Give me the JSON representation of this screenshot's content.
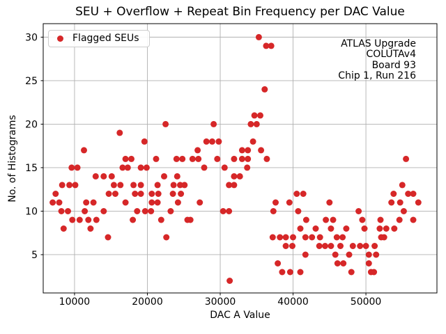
{
  "chart_data": {
    "type": "scatter",
    "title": "SEU + Overflow + Repeat Bin Frequency per DAC Value",
    "xlabel": "DAC A Value",
    "ylabel": "No. of Histograms",
    "xlim": [
      5700,
      59750
    ],
    "ylim": [
      0.6,
      31.55
    ],
    "xticks": [
      10000,
      20000,
      30000,
      40000,
      50000
    ],
    "yticks": [
      5,
      10,
      15,
      20,
      25,
      30
    ],
    "grid": true,
    "grid_color": "#b0b0b0",
    "marker_color": "#d62728",
    "marker_radius": 4.5,
    "legend_position": "upper left",
    "series": [
      {
        "name": "Flagged SEUs",
        "points": [
          [
            7000,
            11
          ],
          [
            7400,
            12
          ],
          [
            7900,
            11
          ],
          [
            8200,
            10
          ],
          [
            8300,
            13
          ],
          [
            8500,
            8
          ],
          [
            9100,
            10
          ],
          [
            9300,
            13
          ],
          [
            9600,
            15
          ],
          [
            9700,
            9
          ],
          [
            10100,
            13
          ],
          [
            10400,
            15
          ],
          [
            10700,
            9
          ],
          [
            11300,
            17
          ],
          [
            11400,
            10
          ],
          [
            11600,
            11
          ],
          [
            11900,
            9
          ],
          [
            12200,
            8
          ],
          [
            12600,
            11
          ],
          [
            12900,
            14
          ],
          [
            13000,
            9
          ],
          [
            14000,
            10
          ],
          [
            14000,
            14
          ],
          [
            14600,
            7
          ],
          [
            14700,
            12
          ],
          [
            15100,
            14
          ],
          [
            15400,
            13
          ],
          [
            15600,
            12
          ],
          [
            16200,
            19
          ],
          [
            16300,
            13
          ],
          [
            16600,
            15
          ],
          [
            17000,
            11
          ],
          [
            17000,
            16
          ],
          [
            17300,
            15
          ],
          [
            17800,
            16
          ],
          [
            18000,
            9
          ],
          [
            18100,
            13
          ],
          [
            18300,
            12
          ],
          [
            18600,
            10
          ],
          [
            19100,
            12
          ],
          [
            19100,
            13
          ],
          [
            19100,
            15
          ],
          [
            19600,
            18
          ],
          [
            19700,
            10
          ],
          [
            19900,
            15
          ],
          [
            20500,
            10
          ],
          [
            20600,
            11
          ],
          [
            20600,
            12
          ],
          [
            21200,
            16
          ],
          [
            21400,
            11
          ],
          [
            21400,
            13
          ],
          [
            21500,
            12
          ],
          [
            21900,
            9
          ],
          [
            22300,
            14
          ],
          [
            22500,
            20
          ],
          [
            22600,
            7
          ],
          [
            23200,
            10
          ],
          [
            23500,
            12
          ],
          [
            23600,
            13
          ],
          [
            24000,
            16
          ],
          [
            24100,
            14
          ],
          [
            24200,
            11
          ],
          [
            24500,
            13
          ],
          [
            24600,
            12
          ],
          [
            24800,
            16
          ],
          [
            25100,
            13
          ],
          [
            25500,
            9
          ],
          [
            25900,
            9
          ],
          [
            26200,
            16
          ],
          [
            26900,
            17
          ],
          [
            27000,
            16
          ],
          [
            27200,
            11
          ],
          [
            27800,
            15
          ],
          [
            28100,
            18
          ],
          [
            28900,
            18
          ],
          [
            29100,
            20
          ],
          [
            29600,
            16
          ],
          [
            29800,
            18
          ],
          [
            30400,
            10
          ],
          [
            30600,
            15
          ],
          [
            31200,
            10
          ],
          [
            31200,
            13
          ],
          [
            31300,
            2
          ],
          [
            31900,
            13
          ],
          [
            31900,
            14
          ],
          [
            31900,
            16
          ],
          [
            32700,
            14
          ],
          [
            33000,
            16
          ],
          [
            33000,
            17
          ],
          [
            33700,
            15
          ],
          [
            33800,
            16
          ],
          [
            33800,
            17
          ],
          [
            34200,
            20
          ],
          [
            34500,
            18
          ],
          [
            34700,
            21
          ],
          [
            35000,
            20
          ],
          [
            35300,
            30
          ],
          [
            35500,
            21
          ],
          [
            35600,
            17
          ],
          [
            36100,
            24
          ],
          [
            36300,
            29
          ],
          [
            36400,
            16
          ],
          [
            37000,
            29
          ],
          [
            37200,
            7
          ],
          [
            37300,
            10
          ],
          [
            37600,
            11
          ],
          [
            37900,
            4
          ],
          [
            38200,
            7
          ],
          [
            38500,
            3
          ],
          [
            39000,
            6
          ],
          [
            39000,
            7
          ],
          [
            39500,
            11
          ],
          [
            39600,
            3
          ],
          [
            39900,
            6
          ],
          [
            40000,
            7
          ],
          [
            40500,
            12
          ],
          [
            40700,
            10
          ],
          [
            41000,
            3
          ],
          [
            41000,
            8
          ],
          [
            41400,
            12
          ],
          [
            41700,
            5
          ],
          [
            41700,
            7
          ],
          [
            41800,
            9
          ],
          [
            42600,
            7
          ],
          [
            43100,
            8
          ],
          [
            43600,
            6
          ],
          [
            43700,
            7
          ],
          [
            44400,
            6
          ],
          [
            44500,
            9
          ],
          [
            45000,
            11
          ],
          [
            45200,
            6
          ],
          [
            45200,
            8
          ],
          [
            45500,
            9
          ],
          [
            45800,
            5
          ],
          [
            46000,
            7
          ],
          [
            46100,
            4
          ],
          [
            46500,
            6
          ],
          [
            46800,
            7
          ],
          [
            46900,
            4
          ],
          [
            47300,
            8
          ],
          [
            47700,
            5
          ],
          [
            48000,
            3
          ],
          [
            48200,
            6
          ],
          [
            49000,
            10
          ],
          [
            49200,
            6
          ],
          [
            49500,
            9
          ],
          [
            49800,
            8
          ],
          [
            50000,
            6
          ],
          [
            50400,
            4
          ],
          [
            50400,
            5
          ],
          [
            50700,
            3
          ],
          [
            51100,
            3
          ],
          [
            51200,
            6
          ],
          [
            51400,
            5
          ],
          [
            51900,
            8
          ],
          [
            52000,
            9
          ],
          [
            52100,
            7
          ],
          [
            52500,
            7
          ],
          [
            52800,
            8
          ],
          [
            53500,
            11
          ],
          [
            53800,
            12
          ],
          [
            53900,
            8
          ],
          [
            54600,
            9
          ],
          [
            54700,
            11
          ],
          [
            55000,
            13
          ],
          [
            55200,
            10
          ],
          [
            55500,
            16
          ],
          [
            55800,
            12
          ],
          [
            56500,
            9
          ],
          [
            56500,
            12
          ],
          [
            57200,
            11
          ]
        ]
      }
    ]
  },
  "legend": {
    "label": "Flagged SEUs",
    "marker_color": "#d62728"
  },
  "annotation": {
    "lines": [
      "ATLAS Upgrade",
      "COLUTAv4",
      "Board 93",
      "Chip 1, Run 216"
    ]
  }
}
